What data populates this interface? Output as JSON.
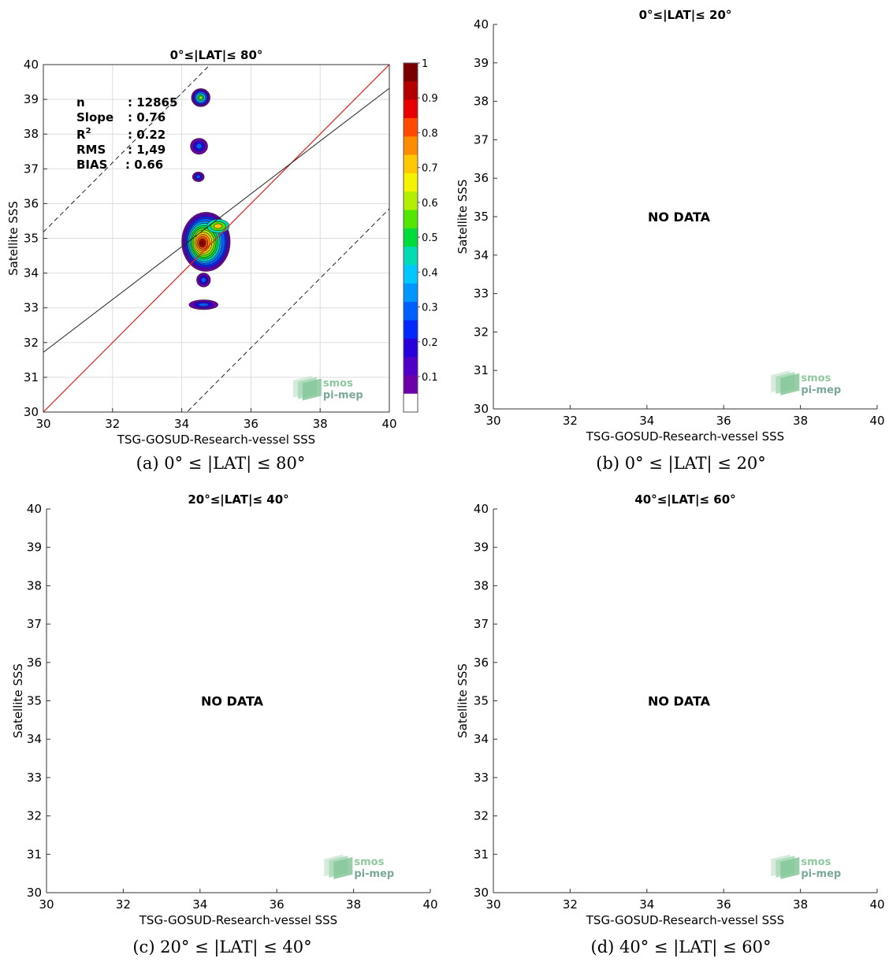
{
  "chart_data": [
    {
      "type": "heatmap",
      "title": "0°≤|LAT|≤ 80°",
      "xlabel": "TSG-GOSUD-Research-vessel SSS",
      "ylabel": "Satellite SSS",
      "xlim": [
        30,
        40
      ],
      "ylim": [
        30,
        40
      ],
      "xticks": [
        30,
        32,
        34,
        36,
        38,
        40
      ],
      "yticks": [
        30,
        31,
        32,
        33,
        34,
        35,
        36,
        37,
        38,
        39,
        40
      ],
      "caption": "(a) 0° ≤ |LAT| ≤ 80°",
      "stats": [
        {
          "label": "n",
          "value": ": 12865"
        },
        {
          "label": "Slope",
          "value": ": 0.76"
        },
        {
          "label": "R2",
          "value": ": 0.22"
        },
        {
          "label": "RMS",
          "value": ": 1,49"
        },
        {
          "label": "BIAS",
          "value": ": 0.66"
        }
      ],
      "lines": {
        "identity": {
          "x": [
            30,
            40
          ],
          "y": [
            30,
            40
          ],
          "color": "#e0211c"
        },
        "fit": {
          "x": [
            30,
            40
          ],
          "y": [
            31.72,
            39.32
          ],
          "color": "#222222"
        },
        "upper_dashed": {
          "x": [
            30,
            40
          ],
          "y": [
            35.18,
            45.18
          ],
          "color": "#222222"
        },
        "lower_dashed": {
          "x": [
            30,
            40
          ],
          "y": [
            25.85,
            35.85
          ],
          "color": "#222222"
        }
      },
      "density_blobs": [
        {
          "cx": 34.7,
          "cy": 34.9,
          "rx": 0.7,
          "ry": 0.85
        },
        {
          "cx": 34.55,
          "cy": 39.05,
          "rx": 0.27,
          "ry": 0.26
        },
        {
          "cx": 34.5,
          "cy": 37.65,
          "rx": 0.25,
          "ry": 0.23
        },
        {
          "cx": 34.48,
          "cy": 36.77,
          "rx": 0.17,
          "ry": 0.14
        },
        {
          "cx": 34.63,
          "cy": 33.09,
          "rx": 0.42,
          "ry": 0.14
        },
        {
          "cx": 34.63,
          "cy": 33.8,
          "rx": 0.2,
          "ry": 0.2
        }
      ],
      "colorbar": {
        "ticks": [
          "1",
          "0.9",
          "0.8",
          "0.7",
          "0.6",
          "0.5",
          "0.4",
          "0.3",
          "0.2",
          "0.1"
        ],
        "colors": [
          "#7a0000",
          "#b40000",
          "#e80000",
          "#ff4a00",
          "#ff8c00",
          "#ffc800",
          "#f4f400",
          "#b2f000",
          "#52e600",
          "#00dc3c",
          "#00dcb4",
          "#00c8ff",
          "#0096ff",
          "#0060ff",
          "#0028ff",
          "#2800dc",
          "#5000c8",
          "#6e00aa",
          "#ffffff"
        ]
      },
      "logo": {
        "line1": "smos",
        "line2": "pi-mep"
      }
    },
    {
      "type": "scatter",
      "title": "0°≤|LAT|≤ 20°",
      "xlabel": "TSG-GOSUD-Research-vessel SSS",
      "ylabel": "Satellite SSS",
      "xlim": [
        30,
        40
      ],
      "ylim": [
        30,
        40
      ],
      "xticks": [
        30,
        32,
        34,
        36,
        38,
        40
      ],
      "yticks": [
        30,
        31,
        32,
        33,
        34,
        35,
        36,
        37,
        38,
        39,
        40
      ],
      "message": "NO DATA",
      "caption": "(b) 0° ≤ |LAT| ≤ 20°",
      "logo": {
        "line1": "smos",
        "line2": "pi-mep"
      }
    },
    {
      "type": "scatter",
      "title": "20°≤|LAT|≤ 40°",
      "xlabel": "TSG-GOSUD-Research-vessel SSS",
      "ylabel": "Satellite SSS",
      "xlim": [
        30,
        40
      ],
      "ylim": [
        30,
        40
      ],
      "xticks": [
        30,
        32,
        34,
        36,
        38,
        40
      ],
      "yticks": [
        30,
        31,
        32,
        33,
        34,
        35,
        36,
        37,
        38,
        39,
        40
      ],
      "message": "NO DATA",
      "caption": "(c) 20° ≤ |LAT| ≤ 40°",
      "logo": {
        "line1": "smos",
        "line2": "pi-mep"
      }
    },
    {
      "type": "scatter",
      "title": "40°≤|LAT|≤ 60°",
      "xlabel": "TSG-GOSUD-Research-vessel SSS",
      "ylabel": "Satellite SSS",
      "xlim": [
        30,
        40
      ],
      "ylim": [
        30,
        40
      ],
      "xticks": [
        30,
        32,
        34,
        36,
        38,
        40
      ],
      "yticks": [
        30,
        31,
        32,
        33,
        34,
        35,
        36,
        37,
        38,
        39,
        40
      ],
      "message": "NO DATA",
      "caption": "(d) 40° ≤ |LAT| ≤ 60°",
      "logo": {
        "line1": "smos",
        "line2": "pi-mep"
      }
    }
  ]
}
